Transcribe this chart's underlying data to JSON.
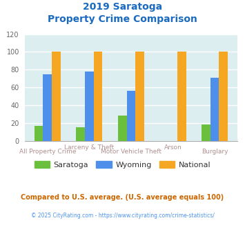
{
  "title_line1": "2019 Saratoga",
  "title_line2": "Property Crime Comparison",
  "x_labels_top": [
    "",
    "Larceny & Theft",
    "",
    "Arson",
    ""
  ],
  "x_labels_bottom": [
    "All Property Crime",
    "",
    "Motor Vehicle Theft",
    "",
    "Burglary"
  ],
  "saratoga": [
    17,
    15,
    28,
    0,
    18
  ],
  "wyoming": [
    75,
    78,
    56,
    0,
    71
  ],
  "national": [
    100,
    100,
    100,
    100,
    100
  ],
  "saratoga_color": "#6abf3c",
  "wyoming_color": "#4d8fea",
  "national_color": "#f5a623",
  "ylim": [
    0,
    120
  ],
  "yticks": [
    0,
    20,
    40,
    60,
    80,
    100,
    120
  ],
  "bg_color": "#ddeef0",
  "grid_color": "#ffffff",
  "title_color": "#1a6bbf",
  "footnote1": "Compared to U.S. average. (U.S. average equals 100)",
  "footnote2": "© 2025 CityRating.com - https://www.cityrating.com/crime-statistics/",
  "footnote1_color": "#cc6600",
  "footnote1_bold": true,
  "footnote2_color": "#4d94eb",
  "legend_labels": [
    "Saratoga",
    "Wyoming",
    "National"
  ],
  "legend_text_color": "#333333",
  "bar_width": 0.21,
  "xlabel_color": "#b09090",
  "ytick_color": "#666666",
  "ytick_fontsize": 7
}
